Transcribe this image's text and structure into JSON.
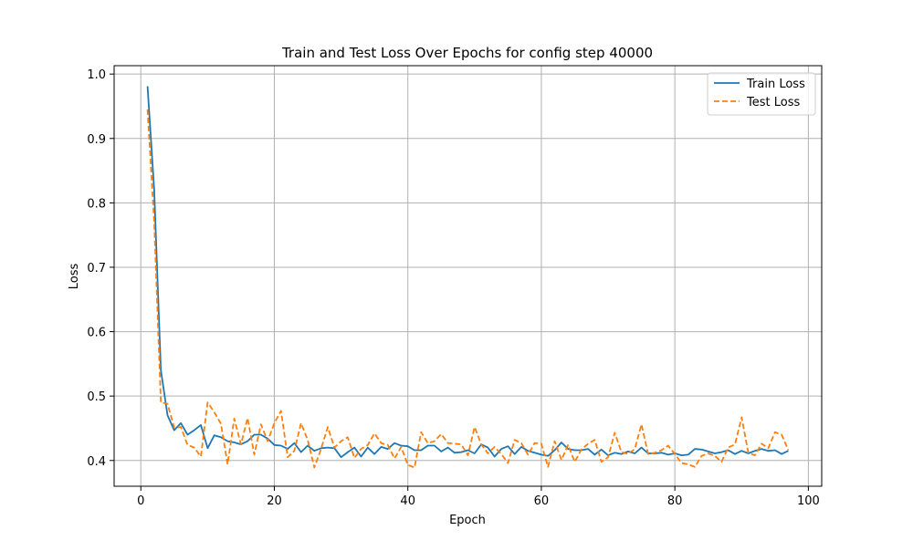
{
  "chart_data": {
    "type": "line",
    "title": "Train and Test Loss Over Epochs for config step 40000",
    "xlabel": "Epoch",
    "ylabel": "Loss",
    "xlim": [
      -4,
      102
    ],
    "ylim": [
      0.36,
      1.013
    ],
    "xticks": [
      0,
      20,
      40,
      60,
      80,
      100
    ],
    "yticks": [
      0.4,
      0.5,
      0.6,
      0.7,
      0.8,
      0.9,
      1.0
    ],
    "xtick_labels": [
      "0",
      "20",
      "40",
      "60",
      "80",
      "100"
    ],
    "ytick_labels": [
      "0.4",
      "0.5",
      "0.6",
      "0.7",
      "0.8",
      "0.9",
      "1.0"
    ],
    "grid": true,
    "legend_position": "top-right",
    "x": [
      1,
      2,
      3,
      4,
      5,
      6,
      7,
      8,
      9,
      10,
      11,
      12,
      13,
      14,
      15,
      16,
      17,
      18,
      19,
      20,
      21,
      22,
      23,
      24,
      25,
      26,
      27,
      28,
      29,
      30,
      31,
      32,
      33,
      34,
      35,
      36,
      37,
      38,
      39,
      40,
      41,
      42,
      43,
      44,
      45,
      46,
      47,
      48,
      49,
      50,
      51,
      52,
      53,
      54,
      55,
      56,
      57,
      58,
      59,
      60,
      61,
      62,
      63,
      64,
      65,
      66,
      67,
      68,
      69,
      70,
      71,
      72,
      73,
      74,
      75,
      76,
      77,
      78,
      79,
      80,
      81,
      82,
      83,
      84,
      85,
      86,
      87,
      88,
      89,
      90,
      91,
      92,
      93,
      94,
      95,
      96,
      97
    ],
    "series": [
      {
        "name": "Train Loss",
        "color": "#1f77b4",
        "style": "solid",
        "values": [
          0.981,
          0.82,
          0.54,
          0.47,
          0.447,
          0.458,
          0.44,
          0.447,
          0.455,
          0.419,
          0.439,
          0.436,
          0.43,
          0.428,
          0.425,
          0.43,
          0.44,
          0.44,
          0.434,
          0.424,
          0.423,
          0.418,
          0.427,
          0.413,
          0.423,
          0.415,
          0.419,
          0.42,
          0.419,
          0.405,
          0.413,
          0.42,
          0.406,
          0.42,
          0.41,
          0.421,
          0.418,
          0.427,
          0.423,
          0.422,
          0.416,
          0.416,
          0.423,
          0.423,
          0.414,
          0.42,
          0.412,
          0.413,
          0.416,
          0.411,
          0.425,
          0.42,
          0.406,
          0.418,
          0.422,
          0.41,
          0.421,
          0.415,
          0.412,
          0.409,
          0.407,
          0.416,
          0.428,
          0.418,
          0.416,
          0.416,
          0.418,
          0.409,
          0.417,
          0.408,
          0.412,
          0.41,
          0.414,
          0.411,
          0.42,
          0.411,
          0.411,
          0.412,
          0.409,
          0.411,
          0.408,
          0.409,
          0.418,
          0.417,
          0.414,
          0.411,
          0.413,
          0.416,
          0.41,
          0.415,
          0.411,
          0.415,
          0.418,
          0.415,
          0.416,
          0.41,
          0.415
        ]
      },
      {
        "name": "Test Loss",
        "color": "#ff7f0e",
        "style": "dashed",
        "values": [
          0.945,
          0.77,
          0.49,
          0.488,
          0.451,
          0.452,
          0.424,
          0.42,
          0.406,
          0.49,
          0.475,
          0.457,
          0.394,
          0.465,
          0.425,
          0.466,
          0.409,
          0.456,
          0.43,
          0.458,
          0.477,
          0.405,
          0.415,
          0.458,
          0.432,
          0.389,
          0.418,
          0.452,
          0.42,
          0.43,
          0.436,
          0.404,
          0.418,
          0.424,
          0.442,
          0.427,
          0.424,
          0.403,
          0.421,
          0.393,
          0.389,
          0.444,
          0.427,
          0.43,
          0.441,
          0.427,
          0.426,
          0.425,
          0.408,
          0.452,
          0.425,
          0.411,
          0.421,
          0.41,
          0.396,
          0.432,
          0.427,
          0.409,
          0.427,
          0.426,
          0.39,
          0.43,
          0.401,
          0.424,
          0.398,
          0.417,
          0.426,
          0.432,
          0.398,
          0.405,
          0.443,
          0.413,
          0.41,
          0.418,
          0.456,
          0.41,
          0.412,
          0.416,
          0.423,
          0.41,
          0.396,
          0.394,
          0.39,
          0.407,
          0.411,
          0.407,
          0.398,
          0.42,
          0.425,
          0.467,
          0.412,
          0.408,
          0.426,
          0.419,
          0.444,
          0.44,
          0.416
        ]
      }
    ]
  }
}
